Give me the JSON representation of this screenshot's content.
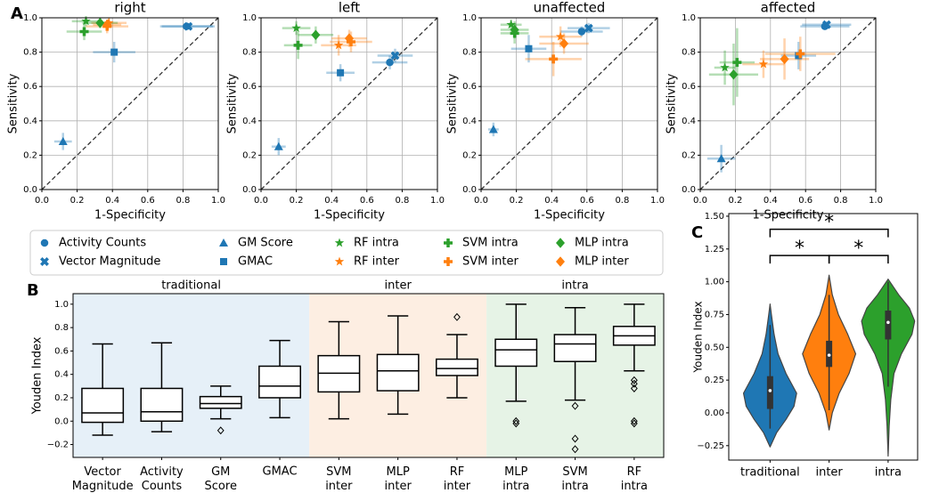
{
  "panel_labels": [
    "A",
    "B",
    "C"
  ],
  "legend": [
    {
      "name": "Activity Counts",
      "color": "#1f77b4",
      "marker": "circle"
    },
    {
      "name": "Vector Magnitude",
      "color": "#1f77b4",
      "marker": "x"
    },
    {
      "name": "GM Score",
      "color": "#1f77b4",
      "marker": "triangle"
    },
    {
      "name": "GMAC",
      "color": "#1f77b4",
      "marker": "square"
    },
    {
      "name": "RF intra",
      "color": "#2ca02c",
      "marker": "star"
    },
    {
      "name": "RF inter",
      "color": "#ff7f0e",
      "marker": "star"
    },
    {
      "name": "SVM intra",
      "color": "#2ca02c",
      "marker": "plus"
    },
    {
      "name": "SVM inter",
      "color": "#ff7f0e",
      "marker": "plus"
    },
    {
      "name": "MLP intra",
      "color": "#2ca02c",
      "marker": "diamond"
    },
    {
      "name": "MLP inter",
      "color": "#ff7f0e",
      "marker": "diamond"
    }
  ],
  "chart_data": [
    {
      "type": "scatter",
      "title": "right",
      "xlabel": "1-Specificity",
      "ylabel": "Sensitivity",
      "xlim": [
        0,
        1
      ],
      "ylim": [
        0,
        1
      ],
      "xticks": [
        {
          "value": 0,
          "label": "0.0"
        },
        0.2,
        0.4,
        0.6,
        0.8,
        {
          "value": 1,
          "label": "1.0"
        }
      ],
      "yticks": [
        {
          "value": 0,
          "label": "0.0"
        },
        0.2,
        0.4,
        0.6,
        0.8,
        {
          "value": 1,
          "label": "1.0"
        }
      ],
      "grid": true,
      "diagonal": true,
      "x": [
        0.82,
        0.83,
        0.12,
        0.41,
        0.25,
        0.38,
        0.24,
        0.37,
        0.33,
        0.37
      ],
      "values": [
        0.95,
        0.95,
        0.28,
        0.8,
        0.98,
        0.97,
        0.92,
        0.95,
        0.97,
        0.96
      ],
      "xerr": [
        0.15,
        0.15,
        0.05,
        0.12,
        0.08,
        0.1,
        0.1,
        0.12,
        0.1,
        0.08
      ],
      "yerr": [
        0.01,
        0.01,
        0.05,
        0.06,
        0.03,
        0.03,
        0.05,
        0.04,
        0.03,
        0.03
      ]
    },
    {
      "type": "scatter",
      "title": "left",
      "xlabel": "1-Specificity",
      "ylabel": "Sensitivity",
      "xlim": [
        0,
        1
      ],
      "ylim": [
        0,
        1
      ],
      "xticks": [
        {
          "value": 0,
          "label": "0.0"
        },
        0.2,
        0.4,
        0.6,
        0.8,
        {
          "value": 1,
          "label": "1.0"
        }
      ],
      "yticks": [
        {
          "value": 0,
          "label": "0.0"
        },
        0.2,
        0.4,
        0.6,
        0.8,
        {
          "value": 1,
          "label": "1.0"
        }
      ],
      "grid": true,
      "diagonal": true,
      "x": [
        0.73,
        0.76,
        0.1,
        0.45,
        0.2,
        0.44,
        0.21,
        0.51,
        0.31,
        0.5
      ],
      "values": [
        0.74,
        0.78,
        0.25,
        0.68,
        0.94,
        0.84,
        0.84,
        0.86,
        0.9,
        0.88
      ],
      "xerr": [
        0.1,
        0.1,
        0.04,
        0.08,
        0.08,
        0.1,
        0.08,
        0.12,
        0.1,
        0.1
      ],
      "yerr": [
        0.04,
        0.04,
        0.05,
        0.05,
        0.04,
        0.06,
        0.08,
        0.06,
        0.05,
        0.05
      ]
    },
    {
      "type": "scatter",
      "title": "unaffected",
      "xlabel": "1-Specificity",
      "ylabel": "Sensitivity",
      "xlim": [
        0,
        1
      ],
      "ylim": [
        0,
        1
      ],
      "xticks": [
        {
          "value": 0,
          "label": "0.0"
        },
        0.2,
        0.4,
        0.6,
        0.8,
        {
          "value": 1,
          "label": "1.0"
        }
      ],
      "yticks": [
        {
          "value": 0,
          "label": "0.0"
        },
        0.2,
        0.4,
        0.6,
        0.8,
        {
          "value": 1,
          "label": "1.0"
        }
      ],
      "grid": true,
      "diagonal": true,
      "x": [
        0.57,
        0.61,
        0.07,
        0.27,
        0.17,
        0.45,
        0.19,
        0.41,
        0.19,
        0.47
      ],
      "values": [
        0.92,
        0.94,
        0.35,
        0.82,
        0.96,
        0.89,
        0.91,
        0.76,
        0.93,
        0.85
      ],
      "xerr": [
        0.12,
        0.12,
        0.03,
        0.1,
        0.06,
        0.12,
        0.08,
        0.16,
        0.08,
        0.14
      ],
      "yerr": [
        0.03,
        0.03,
        0.04,
        0.08,
        0.03,
        0.06,
        0.06,
        0.1,
        0.05,
        0.06
      ]
    },
    {
      "type": "scatter",
      "title": "affected",
      "xlabel": "1-Specificity",
      "ylabel": "Sensitivity",
      "xlim": [
        0,
        1
      ],
      "ylim": [
        0,
        1
      ],
      "xticks": [
        {
          "value": 0,
          "label": "0.0"
        },
        0.2,
        0.4,
        0.6,
        0.8,
        {
          "value": 1,
          "label": "1.0"
        }
      ],
      "yticks": [
        {
          "value": 0,
          "label": "0.0"
        },
        0.2,
        0.4,
        0.6,
        0.8,
        {
          "value": 1,
          "label": "1.0"
        }
      ],
      "grid": true,
      "diagonal": true,
      "x": [
        0.71,
        0.72,
        0.12,
        0.56,
        0.14,
        0.36,
        0.21,
        0.57,
        0.19,
        0.48
      ],
      "values": [
        0.95,
        0.96,
        0.18,
        0.78,
        0.71,
        0.73,
        0.74,
        0.79,
        0.67,
        0.76
      ],
      "xerr": [
        0.14,
        0.14,
        0.08,
        0.1,
        0.06,
        0.12,
        0.1,
        0.2,
        0.14,
        0.14
      ],
      "yerr": [
        0.02,
        0.02,
        0.08,
        0.08,
        0.1,
        0.08,
        0.2,
        0.1,
        0.18,
        0.12
      ]
    },
    {
      "type": "box",
      "ylabel": "Youden Index",
      "ylim": [
        -0.31,
        1.09
      ],
      "yticks": [
        {
          "value": -0.2,
          "label": "−0.2"
        },
        {
          "value": 0,
          "label": "0.0"
        },
        0.2,
        0.4,
        0.6,
        0.8,
        {
          "value": 1,
          "label": "1.0"
        }
      ],
      "groups": [
        {
          "name": "traditional",
          "color": "#e6f0f8",
          "categories": [
            "Vector Magnitude",
            "Activity Counts",
            "GM Score",
            "GMAC"
          ],
          "boxes": [
            {
              "whislo": -0.12,
              "q1": -0.01,
              "med": 0.07,
              "q3": 0.28,
              "whishi": 0.66,
              "fliers": []
            },
            {
              "whislo": -0.09,
              "q1": 0.0,
              "med": 0.08,
              "q3": 0.28,
              "whishi": 0.67,
              "fliers": []
            },
            {
              "whislo": 0.02,
              "q1": 0.11,
              "med": 0.15,
              "q3": 0.21,
              "whishi": 0.3,
              "fliers": [
                -0.08
              ]
            },
            {
              "whislo": 0.03,
              "q1": 0.2,
              "med": 0.3,
              "q3": 0.47,
              "whishi": 0.69,
              "fliers": []
            }
          ]
        },
        {
          "name": "inter",
          "color": "#fdeee2",
          "categories": [
            "SVM inter",
            "MLP inter",
            "RF inter"
          ],
          "boxes": [
            {
              "whislo": 0.02,
              "q1": 0.25,
              "med": 0.41,
              "q3": 0.56,
              "whishi": 0.85,
              "fliers": []
            },
            {
              "whislo": 0.06,
              "q1": 0.26,
              "med": 0.43,
              "q3": 0.57,
              "whishi": 0.9,
              "fliers": []
            },
            {
              "whislo": 0.2,
              "q1": 0.39,
              "med": 0.45,
              "q3": 0.53,
              "whishi": 0.74,
              "fliers": [
                0.89
              ]
            }
          ]
        },
        {
          "name": "intra",
          "color": "#e6f3e6",
          "categories": [
            "MLP intra",
            "SVM intra",
            "RF intra"
          ],
          "boxes": [
            {
              "whislo": 0.17,
              "q1": 0.47,
              "med": 0.61,
              "q3": 0.7,
              "whishi": 1.0,
              "fliers": [
                0.0,
                -0.02
              ]
            },
            {
              "whislo": 0.18,
              "q1": 0.51,
              "med": 0.66,
              "q3": 0.74,
              "whishi": 0.97,
              "fliers": [
                0.13,
                -0.15,
                -0.24
              ]
            },
            {
              "whislo": 0.43,
              "q1": 0.65,
              "med": 0.73,
              "q3": 0.81,
              "whishi": 1.0,
              "fliers": [
                0.35,
                0.32,
                0.28,
                0.0,
                -0.02
              ]
            }
          ]
        }
      ]
    },
    {
      "type": "violin",
      "ylabel": "Youden Index",
      "ylim": [
        -0.36,
        1.52
      ],
      "yticks": [
        {
          "value": -0.25,
          "label": "−0.25"
        },
        {
          "value": 0,
          "label": "0.00"
        },
        0.25,
        {
          "value": 0.5,
          "label": "0.50"
        },
        0.75,
        {
          "value": 1,
          "label": "1.00"
        },
        1.25,
        {
          "value": 1.5,
          "label": "1.50"
        }
      ],
      "categories": [
        "traditional",
        "inter",
        "intra"
      ],
      "colors": [
        "#1f77b4",
        "#ff7f0e",
        "#2ca02c"
      ],
      "violins": [
        {
          "kde_y": [
            -0.26,
            -0.15,
            -0.05,
            0.05,
            0.15,
            0.3,
            0.45,
            0.6,
            0.75,
            0.83
          ],
          "kde_width": [
            0,
            0.25,
            0.6,
            0.9,
            1.0,
            0.6,
            0.3,
            0.15,
            0.05,
            0
          ],
          "whislo": -0.12,
          "q1": 0.03,
          "med": 0.17,
          "q3": 0.28,
          "whishi": 0.67
        },
        {
          "kde_y": [
            -0.13,
            0,
            0.15,
            0.3,
            0.45,
            0.6,
            0.75,
            0.9,
            1.05
          ],
          "kde_width": [
            0,
            0.12,
            0.38,
            0.75,
            1.0,
            0.7,
            0.35,
            0.12,
            0
          ],
          "whislo": 0.02,
          "q1": 0.35,
          "med": 0.44,
          "q3": 0.55,
          "whishi": 0.9
        },
        {
          "kde_y": [
            -0.33,
            -0.1,
            0.1,
            0.3,
            0.45,
            0.6,
            0.7,
            0.8,
            0.9,
            1.02
          ],
          "kde_width": [
            0,
            0.04,
            0.1,
            0.22,
            0.5,
            0.9,
            1.0,
            0.8,
            0.4,
            0
          ],
          "whislo": 0.2,
          "q1": 0.56,
          "med": 0.69,
          "q3": 0.78,
          "whishi": 1.0
        }
      ],
      "brackets": [
        {
          "from": "traditional",
          "to": "intra",
          "y": 1.4,
          "label": "*"
        },
        {
          "from": "traditional",
          "to": "inter",
          "y": 1.2,
          "label": "*"
        },
        {
          "from": "inter",
          "to": "intra",
          "y": 1.2,
          "label": "*"
        }
      ]
    }
  ]
}
